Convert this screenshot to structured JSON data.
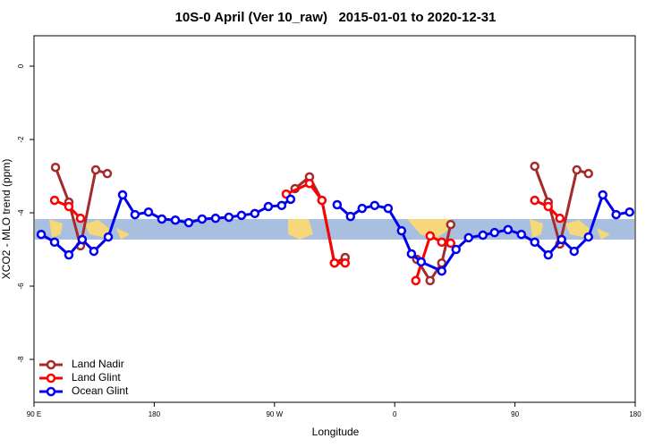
{
  "chart_data": {
    "type": "line",
    "title": "10S-0 April (Ver 10_raw)   2015-01-01 to 2020-12-31",
    "xlabel": "Longitude",
    "ylabel": "XCO2 - MLO trend (ppm)",
    "xlim": [
      90,
      540
    ],
    "ylim": [
      -9.17,
      0.83
    ],
    "xticks": [
      {
        "value": 90,
        "label": "90 E"
      },
      {
        "value": 180,
        "label": "180"
      },
      {
        "value": 270,
        "label": "90 W"
      },
      {
        "value": 360,
        "label": "0"
      },
      {
        "value": 450,
        "label": "90"
      },
      {
        "value": 540,
        "label": "180"
      }
    ],
    "yticks": [
      0,
      -2,
      -4,
      -6,
      -8
    ],
    "legend": "bottom-left",
    "series": [
      {
        "name": "Land Nadir",
        "color": "#a52a2a",
        "x": [
          106.1,
          116.1,
          124.8,
          136.2,
          144.9,
          null,
          285.4,
          296.2,
          305.5,
          314.9,
          322.9,
          null,
          376.5,
          386.5,
          395.2,
          401.9,
          null,
          464.8,
          474.9,
          483.6,
          496.3,
          505.0
        ],
        "values": [
          -2.76,
          -3.71,
          -4.9,
          -2.83,
          -2.93,
          null,
          -3.34,
          -3.02,
          -3.66,
          -5.37,
          -5.22,
          null,
          -5.27,
          -5.85,
          -5.37,
          -4.32,
          null,
          -2.73,
          -3.71,
          -4.85,
          -2.83,
          -2.93
        ]
      },
      {
        "name": "Land Glint",
        "color": "#ff0000",
        "x": [
          105.4,
          116.1,
          124.8,
          null,
          278.8,
          296.2,
          305.5,
          314.9,
          322.9,
          null,
          375.8,
          386.5,
          395.2,
          401.9,
          null,
          464.8,
          474.9,
          483.6
        ],
        "values": [
          -3.66,
          -3.83,
          -4.15,
          null,
          -3.49,
          -3.2,
          -3.66,
          -5.37,
          -5.37,
          null,
          -5.85,
          -4.63,
          -4.8,
          -4.83,
          null,
          -3.66,
          -3.83,
          -4.15
        ]
      },
      {
        "name": "Ocean Glint",
        "color": "#0000ee",
        "x": [
          95.4,
          105.4,
          116.1,
          126.1,
          134.8,
          145.6,
          156.3,
          165.6,
          175.7,
          185.7,
          195.8,
          205.8,
          215.8,
          225.9,
          235.9,
          245.3,
          255.3,
          265.4,
          275.4,
          282.1,
          null,
          316.9,
          326.9,
          335.6,
          345.0,
          355.1,
          365.1,
          372.5,
          379.8,
          395.2,
          405.9,
          415.3,
          426.0,
          434.7,
          444.8,
          454.8,
          464.8,
          474.9,
          484.9,
          494.3,
          505.0,
          515.7,
          525.7,
          535.8
        ],
        "values": [
          -4.59,
          -4.8,
          -5.15,
          -4.73,
          -5.05,
          -4.66,
          -3.51,
          -4.05,
          -3.98,
          -4.17,
          -4.2,
          -4.27,
          -4.17,
          -4.15,
          -4.12,
          -4.07,
          -4.02,
          -3.83,
          -3.8,
          -3.63,
          null,
          -3.78,
          -4.1,
          -3.88,
          -3.8,
          -3.88,
          -4.49,
          -5.12,
          -5.34,
          -5.59,
          -5.0,
          -4.68,
          -4.61,
          -4.54,
          -4.46,
          -4.59,
          -4.8,
          -5.15,
          -4.73,
          -5.05,
          -4.66,
          -3.51,
          -4.05,
          -3.98
        ]
      }
    ]
  }
}
